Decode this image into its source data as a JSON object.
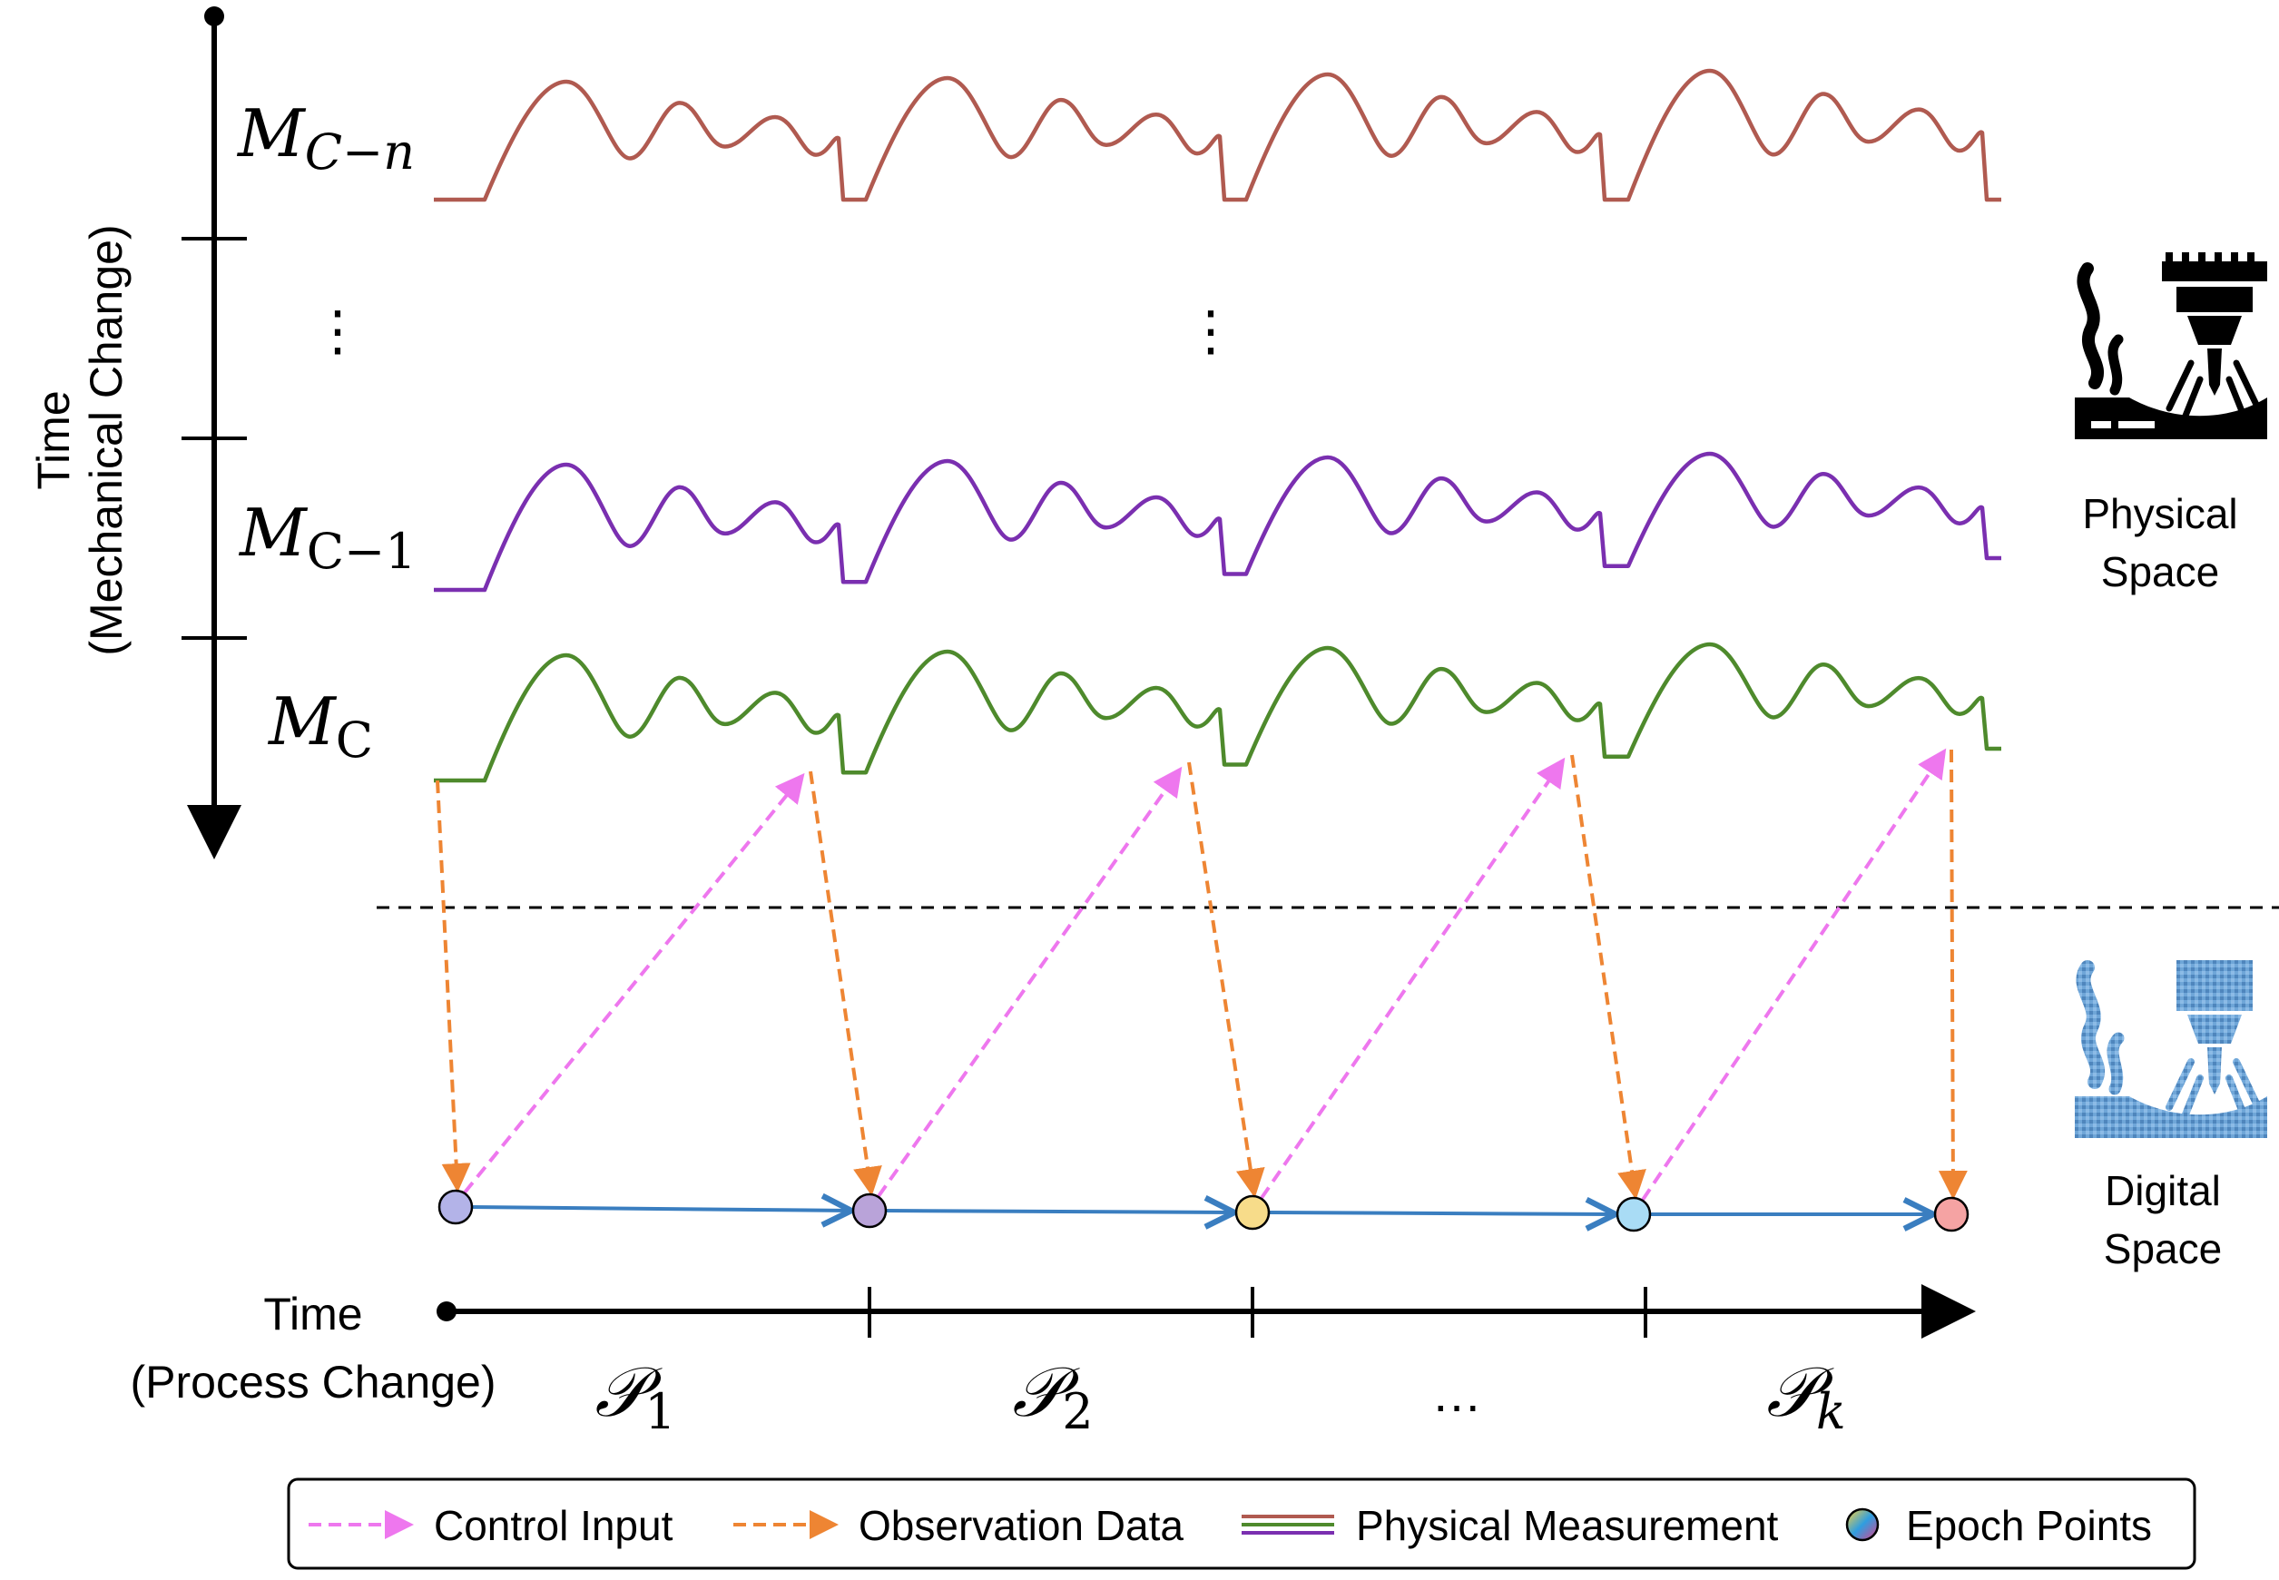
{
  "vertical_axis": {
    "title_line1": "Time",
    "title_line2": "(Mechanical Change)"
  },
  "horizontal_axis": {
    "title_line1": "Time",
    "title_line2": "(Process Change)"
  },
  "measurement_rows": [
    {
      "label_main": "M",
      "label_sub": "C−n",
      "color": "#b05a50"
    },
    {
      "label_main": "M",
      "label_sub": "C−1",
      "color": "#7a2fb0"
    },
    {
      "label_main": "M",
      "label_sub": "C",
      "color": "#4e8a2c"
    }
  ],
  "row_ellipsis": "⋮",
  "processes": [
    {
      "letter": "𝒫",
      "sub": "1"
    },
    {
      "letter": "𝒫",
      "sub": "2"
    },
    {
      "letter": "…",
      "sub": ""
    },
    {
      "letter": "𝒫",
      "sub": "k"
    }
  ],
  "spaces": {
    "physical_line1": "Physical",
    "physical_line2": "Space",
    "digital_line1": "Digital",
    "digital_line2": "Space"
  },
  "epoch_colors": [
    "#b3b3e8",
    "#b9a3d9",
    "#f7dc8a",
    "#a9dcf5",
    "#f5a3a3"
  ],
  "legend": {
    "control_input": "Control Input",
    "observation_data": "Observation Data",
    "physical_measurement": "Physical Measurement",
    "epoch_points": "Epoch Points"
  },
  "colors": {
    "control": "#ee77ee",
    "observation": "#ee8533",
    "timeline": "#3a7ec0",
    "axis": "#000000"
  }
}
